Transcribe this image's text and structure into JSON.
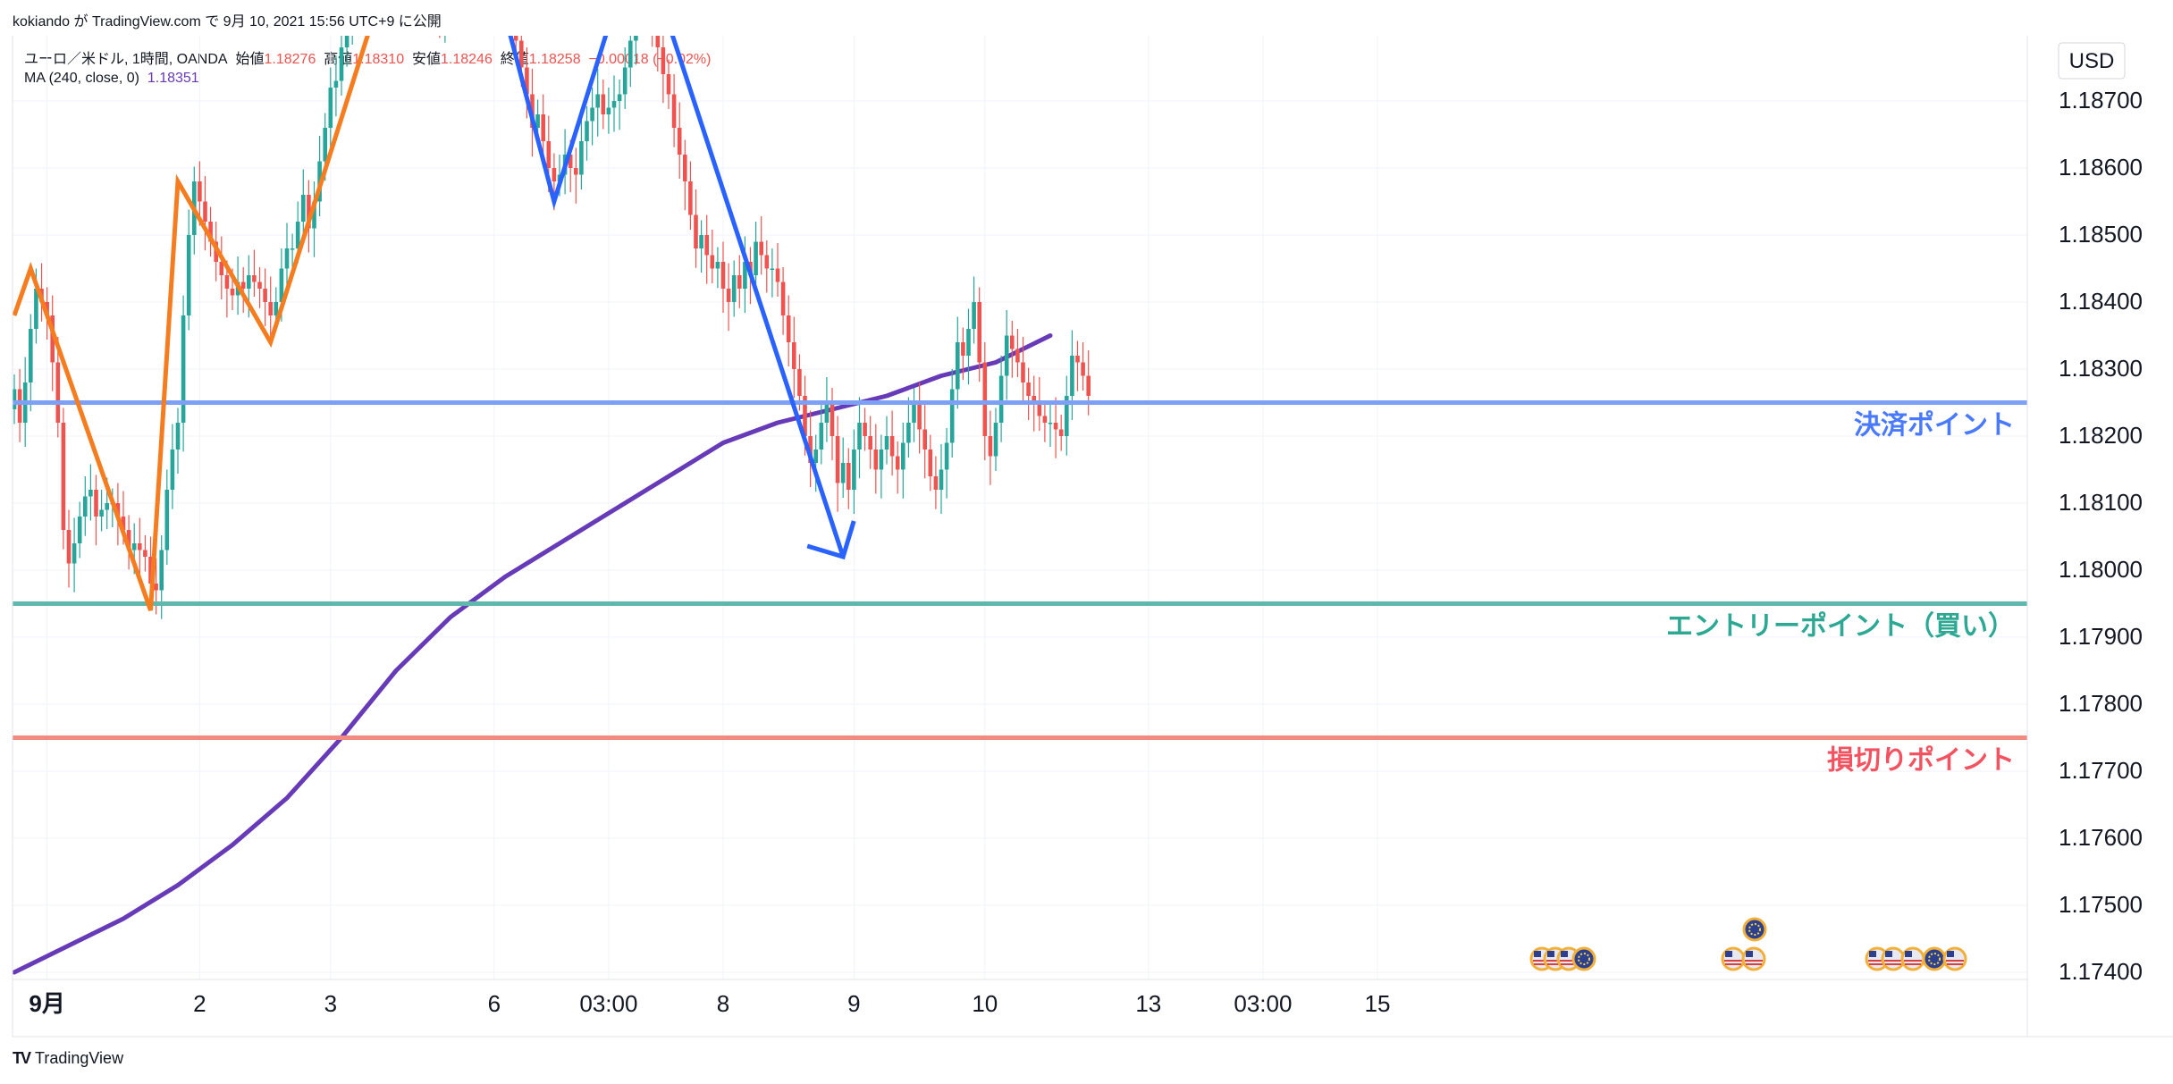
{
  "header": {
    "publish_line": "kokiando が TradingView.com で 9月 10, 2021 15:56 UTC+9 に公開"
  },
  "symbol_line": {
    "name": "ユーロ／米ドル, 1時間, OANDA",
    "open_label": "始値",
    "open": "1.18276",
    "high_label": "高値",
    "high": "1.18310",
    "low_label": "安値",
    "low": "1.18246",
    "close_label": "終値",
    "close": "1.18258",
    "change": "−0.00018 (−0.02%)"
  },
  "ma_line": {
    "label": "MA (240, close, 0)",
    "value": "1.18351"
  },
  "footer": {
    "brand": "TradingView",
    "logo": "TV"
  },
  "chart_data": {
    "type": "candlestick",
    "currency": "USD",
    "ylim": [
      1.174,
      1.188
    ],
    "y_ticks": [
      "1.18700",
      "1.18600",
      "1.18500",
      "1.18400",
      "1.18300",
      "1.18200",
      "1.18100",
      "1.18000",
      "1.17900",
      "1.17800",
      "1.17700",
      "1.17600",
      "1.17500",
      "1.17400"
    ],
    "x_ticks": [
      {
        "label": "9月",
        "i": 6,
        "bold": true
      },
      {
        "label": "2",
        "i": 34
      },
      {
        "label": "3",
        "i": 58
      },
      {
        "label": "6",
        "i": 88
      },
      {
        "label": "03:00",
        "i": 109
      },
      {
        "label": "8",
        "i": 130
      },
      {
        "label": "9",
        "i": 154
      },
      {
        "label": "10",
        "i": 178
      },
      {
        "label": "13",
        "i": 208
      },
      {
        "label": "03:00",
        "i": 229
      },
      {
        "label": "15",
        "i": 250
      }
    ],
    "colors": {
      "up": "#26a69a",
      "down": "#ef5350",
      "ma": "#673ab7",
      "zigzag_orange": "#f57c1f",
      "zigzag_blue": "#2962ff"
    },
    "levels": [
      {
        "value": 1.1825,
        "price_label": "1.18250",
        "text": "決済ポイント",
        "color": "#2962ff",
        "line_color": "#7da0f5"
      },
      {
        "value": 1.1795,
        "price_label": "1.17950",
        "text": "エントリーポイント（買い）",
        "color": "#089981",
        "line_color": "#5fb8ac"
      },
      {
        "value": 1.1775,
        "price_label": "1.17750",
        "text": "損切りポイント",
        "color": "#f23645",
        "line_color": "#f28a82"
      }
    ],
    "zigzag_orange": [
      [
        0,
        1.1838
      ],
      [
        3,
        1.1845
      ],
      [
        25,
        1.1794
      ],
      [
        30,
        1.1858
      ],
      [
        47,
        1.1834
      ],
      [
        68,
        1.1888
      ],
      [
        70,
        1.1888
      ]
    ],
    "zigzag_blue": [
      [
        88,
        1.1889
      ],
      [
        99,
        1.1855
      ],
      [
        112,
        1.1889
      ],
      [
        117,
        1.1889
      ],
      [
        152,
        1.1802
      ]
    ],
    "ma_points": [
      [
        0,
        1.174
      ],
      [
        10,
        1.1744
      ],
      [
        20,
        1.1748
      ],
      [
        30,
        1.1753
      ],
      [
        40,
        1.1759
      ],
      [
        50,
        1.1766
      ],
      [
        60,
        1.1775
      ],
      [
        70,
        1.1785
      ],
      [
        80,
        1.1793
      ],
      [
        90,
        1.1799
      ],
      [
        100,
        1.1804
      ],
      [
        110,
        1.1809
      ],
      [
        120,
        1.1814
      ],
      [
        130,
        1.1819
      ],
      [
        140,
        1.1822
      ],
      [
        150,
        1.1824
      ],
      [
        160,
        1.1826
      ],
      [
        170,
        1.1829
      ],
      [
        180,
        1.1831
      ],
      [
        190,
        1.1835
      ]
    ],
    "candles_close": [
      1.1827,
      1.1822,
      1.1828,
      1.1836,
      1.1842,
      1.184,
      1.1838,
      1.1831,
      1.1822,
      1.1806,
      1.1801,
      1.1804,
      1.1808,
      1.1811,
      1.1812,
      1.1808,
      1.1809,
      1.181,
      1.181,
      1.1808,
      1.1806,
      1.1803,
      1.1804,
      1.1803,
      1.1802,
      1.1798,
      1.1797,
      1.1803,
      1.1812,
      1.1818,
      1.1822,
      1.1838,
      1.185,
      1.1858,
      1.1855,
      1.1852,
      1.1849,
      1.1846,
      1.1844,
      1.1842,
      1.1841,
      1.1843,
      1.1842,
      1.1844,
      1.1843,
      1.1842,
      1.184,
      1.1838,
      1.184,
      1.1845,
      1.1848,
      1.1848,
      1.1852,
      1.1856,
      1.1851,
      1.1855,
      1.1861,
      1.1866,
      1.1872,
      1.1873,
      1.1878,
      1.1882,
      1.1885,
      1.1887,
      1.1889,
      1.1891,
      1.1892,
      1.1888,
      1.189,
      1.1893,
      1.1892,
      1.189,
      1.1895,
      1.1894,
      1.1892,
      1.189,
      1.1888,
      1.1885,
      1.1883,
      1.1886,
      1.189,
      1.1889,
      1.1891,
      1.1892,
      1.1894,
      1.1893,
      1.1895,
      1.1894,
      1.1893,
      1.1892,
      1.1889,
      1.1883,
      1.1879,
      1.1875,
      1.1871,
      1.1866,
      1.1868,
      1.1864,
      1.186,
      1.1858,
      1.1859,
      1.1862,
      1.186,
      1.1859,
      1.1864,
      1.1867,
      1.1869,
      1.1871,
      1.1868,
      1.1869,
      1.187,
      1.1871,
      1.1875,
      1.1879,
      1.1885,
      1.1887,
      1.1885,
      1.1881,
      1.1878,
      1.1874,
      1.1871,
      1.1866,
      1.1862,
      1.1858,
      1.1853,
      1.1848,
      1.185,
      1.1847,
      1.1845,
      1.1846,
      1.1842,
      1.184,
      1.1844,
      1.1842,
      1.1846,
      1.1844,
      1.1849,
      1.1847,
      1.1845,
      1.1845,
      1.1843,
      1.1838,
      1.1834,
      1.183,
      1.1826,
      1.182,
      1.1816,
      1.1818,
      1.1822,
      1.1825,
      1.182,
      1.1813,
      1.1816,
      1.1812,
      1.1818,
      1.1822,
      1.182,
      1.1818,
      1.1815,
      1.1818,
      1.182,
      1.1817,
      1.1815,
      1.1819,
      1.1822,
      1.1825,
      1.1821,
      1.1818,
      1.1814,
      1.1812,
      1.1815,
      1.1819,
      1.1827,
      1.1834,
      1.1832,
      1.1836,
      1.184,
      1.1831,
      1.182,
      1.1817,
      1.1822,
      1.1829,
      1.1835,
      1.1833,
      1.1831,
      1.1828,
      1.1826,
      1.1825,
      1.1823,
      1.1822,
      1.1822,
      1.1821,
      1.182,
      1.1826,
      1.1832,
      1.1831,
      1.1829,
      1.1826
    ]
  }
}
